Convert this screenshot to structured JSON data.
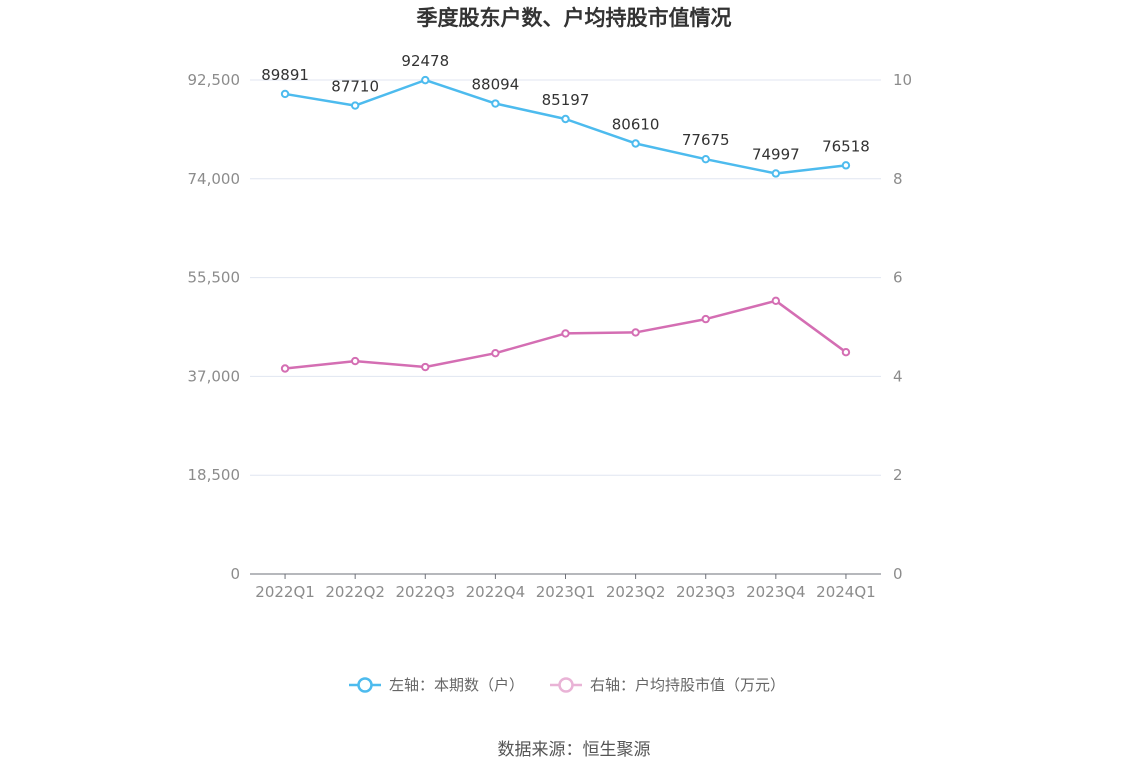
{
  "chart_data": {
    "type": "line",
    "title": "季度股东户数、户均持股市值情况",
    "categories": [
      "2022Q1",
      "2022Q2",
      "2022Q3",
      "2022Q4",
      "2023Q1",
      "2023Q2",
      "2023Q3",
      "2023Q4",
      "2024Q1"
    ],
    "left_axis": {
      "ticks": [
        "0",
        "18,500",
        "37,000",
        "55,500",
        "74,000",
        "92,500"
      ],
      "min": 0,
      "max": 92500
    },
    "right_axis": {
      "ticks": [
        "0",
        "2",
        "4",
        "6",
        "8",
        "10"
      ],
      "min": 0,
      "max": 10
    },
    "series": [
      {
        "name": "左轴：本期数（户）",
        "axis": "left",
        "color": "#4dbbee",
        "values": [
          89891,
          87710,
          92478,
          88094,
          85197,
          80610,
          77675,
          74997,
          76518
        ],
        "labels": [
          "89891",
          "87710",
          "92478",
          "88094",
          "85197",
          "80610",
          "77675",
          "74997",
          "76518"
        ]
      },
      {
        "name": "右轴：户均持股市值（万元）",
        "axis": "right",
        "color": "#d46eb3",
        "values": [
          4.16,
          4.31,
          4.19,
          4.47,
          4.87,
          4.89,
          5.16,
          5.53,
          4.49
        ]
      }
    ],
    "grid": true,
    "legend": "bottom"
  },
  "source": "数据来源：恒生聚源"
}
